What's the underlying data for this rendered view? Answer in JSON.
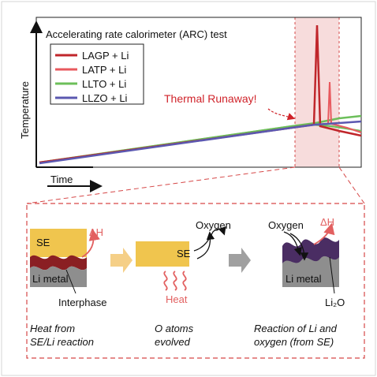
{
  "chart": {
    "title": "Accelerating rate calorimeter (ARC) test",
    "ylabel": "Temperature",
    "xlabel": "Time",
    "annotation": "Thermal Runaway!"
  },
  "legend": [
    {
      "name": "LAGP  + Li",
      "color": "#c0262b"
    },
    {
      "name": "LATP  + Li",
      "color": "#e8595e"
    },
    {
      "name": "LLTO  + Li",
      "color": "#6cbf5a"
    },
    {
      "name": "LLZO  + Li",
      "color": "#5b58b0"
    }
  ],
  "colors": {
    "axis": "#111111",
    "runaway_band": "#f7dcdc",
    "dashed_red": "#d64848",
    "annotation": "#d0232a",
    "se_block": "#f0c54e",
    "li_metal": "#8e8e8e",
    "interphase": "#8a1f23",
    "oxide": "#4a2d63",
    "heat_arrow": "#e26060",
    "process_arrow_1": "#f5cf87",
    "process_arrow_2": "#a0a0a0"
  },
  "panels": {
    "p1": {
      "se": "SE",
      "dh": "ΔH",
      "metal": "Li metal",
      "interphase": "Interphase",
      "caption_1": "Heat from",
      "caption_2": "SE/Li reaction"
    },
    "p2": {
      "oxygen": "Oxygen",
      "se": "SE",
      "heat": "Heat",
      "caption_1": "O atoms",
      "caption_2": "evolved"
    },
    "p3": {
      "oxygen": "Oxygen",
      "dh": "ΔH",
      "metal": "Li metal",
      "oxide": "Li₂O",
      "caption_1": "Reaction of Li and",
      "caption_2": "oxygen (from SE)"
    }
  }
}
